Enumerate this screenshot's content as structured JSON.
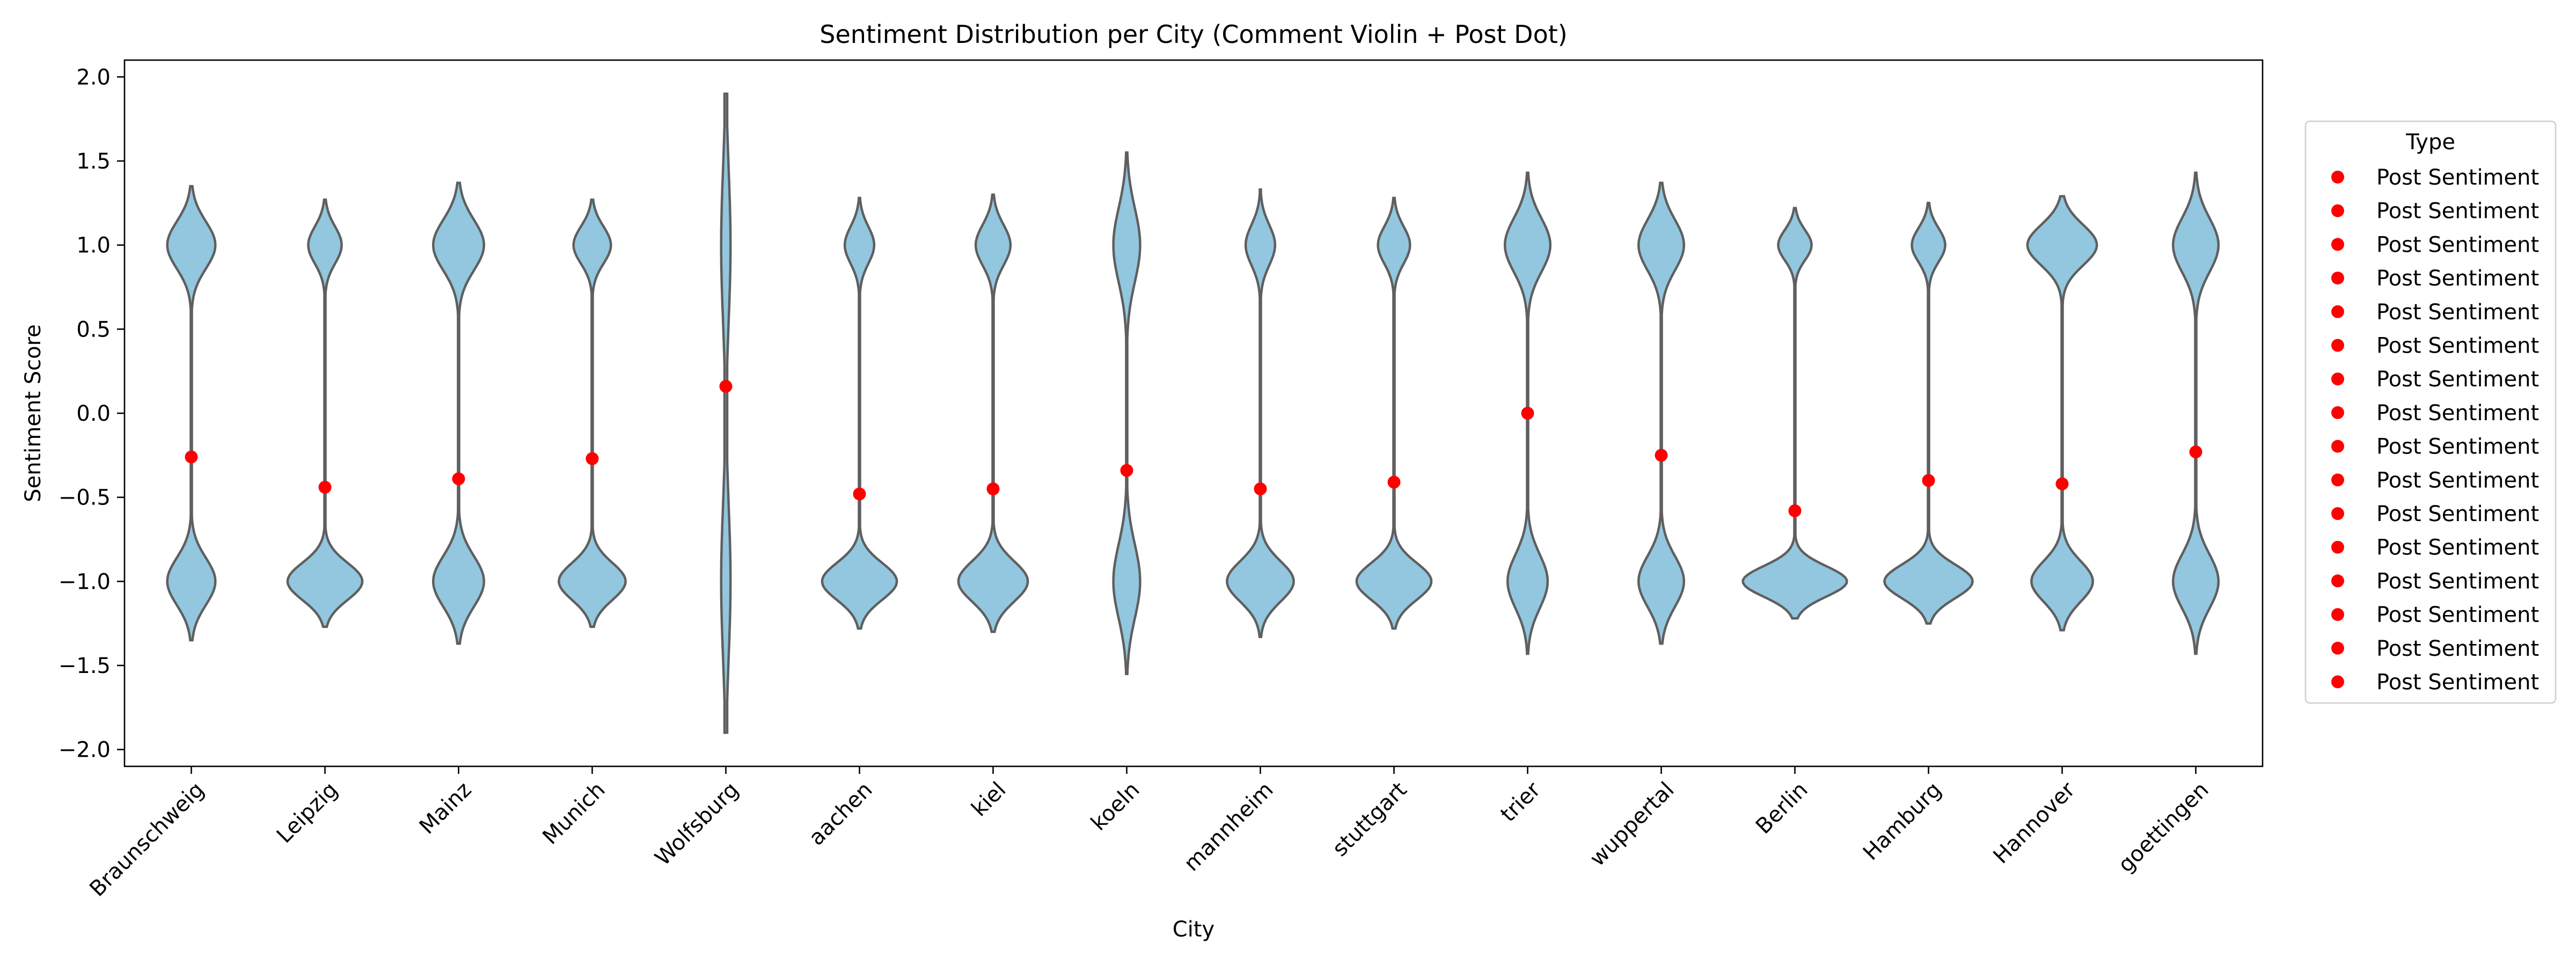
{
  "chart_data": {
    "type": "violin",
    "title": "Sentiment Distribution per City (Comment Violin + Post Dot)",
    "xlabel": "City",
    "ylabel": "Sentiment Score",
    "ylim": [
      -2.1,
      2.1
    ],
    "yticks": [
      -2.0,
      -1.5,
      -1.0,
      -0.5,
      0.0,
      0.5,
      1.0,
      1.5,
      2.0
    ],
    "ytick_labels": [
      "−2.0",
      "−1.5",
      "−1.0",
      "−0.5",
      "0.0",
      "0.5",
      "1.0",
      "1.5",
      "2.0"
    ],
    "categories": [
      "Braunschweig",
      "Leipzig",
      "Mainz",
      "Munich",
      "Wolfsburg",
      "aachen",
      "kiel",
      "koeln",
      "mannheim",
      "stuttgart",
      "trier",
      "wuppertal",
      "Berlin",
      "Hamburg",
      "Hannover",
      "goettingen"
    ],
    "violins": [
      {
        "min": -1.35,
        "max": 1.35,
        "upper_width": 0.36,
        "lower_width": 0.36,
        "upper_sd": 0.14,
        "lower_sd": 0.14,
        "neck_width": 0.008
      },
      {
        "min": -1.27,
        "max": 1.27,
        "upper_width": 0.25,
        "lower_width": 0.56,
        "upper_sd": 0.11,
        "lower_sd": 0.11,
        "neck_width": 0.008
      },
      {
        "min": -1.37,
        "max": 1.37,
        "upper_width": 0.38,
        "lower_width": 0.38,
        "upper_sd": 0.15,
        "lower_sd": 0.15,
        "neck_width": 0.008
      },
      {
        "min": -1.27,
        "max": 1.27,
        "upper_width": 0.28,
        "lower_width": 0.5,
        "upper_sd": 0.11,
        "lower_sd": 0.11,
        "neck_width": 0.008
      },
      {
        "min": -1.9,
        "max": 1.9,
        "upper_width": 0.07,
        "lower_width": 0.07,
        "upper_sd": 0.45,
        "lower_sd": 0.45,
        "neck_width": 0.02
      },
      {
        "min": -1.28,
        "max": 1.28,
        "upper_width": 0.22,
        "lower_width": 0.56,
        "upper_sd": 0.11,
        "lower_sd": 0.11,
        "neck_width": 0.008
      },
      {
        "min": -1.3,
        "max": 1.3,
        "upper_width": 0.26,
        "lower_width": 0.52,
        "upper_sd": 0.12,
        "lower_sd": 0.12,
        "neck_width": 0.008
      },
      {
        "min": -1.55,
        "max": 1.55,
        "upper_width": 0.2,
        "lower_width": 0.2,
        "upper_sd": 0.22,
        "lower_sd": 0.22,
        "neck_width": 0.008
      },
      {
        "min": -1.33,
        "max": 1.33,
        "upper_width": 0.22,
        "lower_width": 0.5,
        "upper_sd": 0.12,
        "lower_sd": 0.12,
        "neck_width": 0.008
      },
      {
        "min": -1.28,
        "max": 1.28,
        "upper_width": 0.24,
        "lower_width": 0.56,
        "upper_sd": 0.11,
        "lower_sd": 0.11,
        "neck_width": 0.008
      },
      {
        "min": -1.43,
        "max": 1.43,
        "upper_width": 0.34,
        "lower_width": 0.3,
        "upper_sd": 0.16,
        "lower_sd": 0.16,
        "neck_width": 0.008
      },
      {
        "min": -1.37,
        "max": 1.37,
        "upper_width": 0.34,
        "lower_width": 0.34,
        "upper_sd": 0.15,
        "lower_sd": 0.15,
        "neck_width": 0.008
      },
      {
        "min": -1.22,
        "max": 1.22,
        "upper_width": 0.25,
        "lower_width": 0.78,
        "upper_sd": 0.09,
        "lower_sd": 0.09,
        "neck_width": 0.008
      },
      {
        "min": -1.25,
        "max": 1.25,
        "upper_width": 0.25,
        "lower_width": 0.66,
        "upper_sd": 0.1,
        "lower_sd": 0.1,
        "neck_width": 0.008
      },
      {
        "min": -1.29,
        "max": 1.29,
        "upper_width": 0.52,
        "lower_width": 0.46,
        "upper_sd": 0.12,
        "lower_sd": 0.12,
        "neck_width": 0.008
      },
      {
        "min": -1.43,
        "max": 1.43,
        "upper_width": 0.34,
        "lower_width": 0.34,
        "upper_sd": 0.16,
        "lower_sd": 0.16,
        "neck_width": 0.008
      }
    ],
    "post_sentiment": [
      -0.26,
      -0.44,
      -0.39,
      -0.27,
      0.16,
      -0.48,
      -0.45,
      -0.34,
      -0.45,
      -0.41,
      0.0,
      -0.25,
      -0.58,
      -0.4,
      -0.42,
      -0.23
    ],
    "legend": {
      "title": "Type",
      "position": "right",
      "entries": [
        "Post Sentiment",
        "Post Sentiment",
        "Post Sentiment",
        "Post Sentiment",
        "Post Sentiment",
        "Post Sentiment",
        "Post Sentiment",
        "Post Sentiment",
        "Post Sentiment",
        "Post Sentiment",
        "Post Sentiment",
        "Post Sentiment",
        "Post Sentiment",
        "Post Sentiment",
        "Post Sentiment",
        "Post Sentiment"
      ]
    },
    "colors": {
      "violin_fill": "#92c7df",
      "violin_edge": "#5f5f5f",
      "post_dot": "#ff0000"
    },
    "grid": false
  }
}
